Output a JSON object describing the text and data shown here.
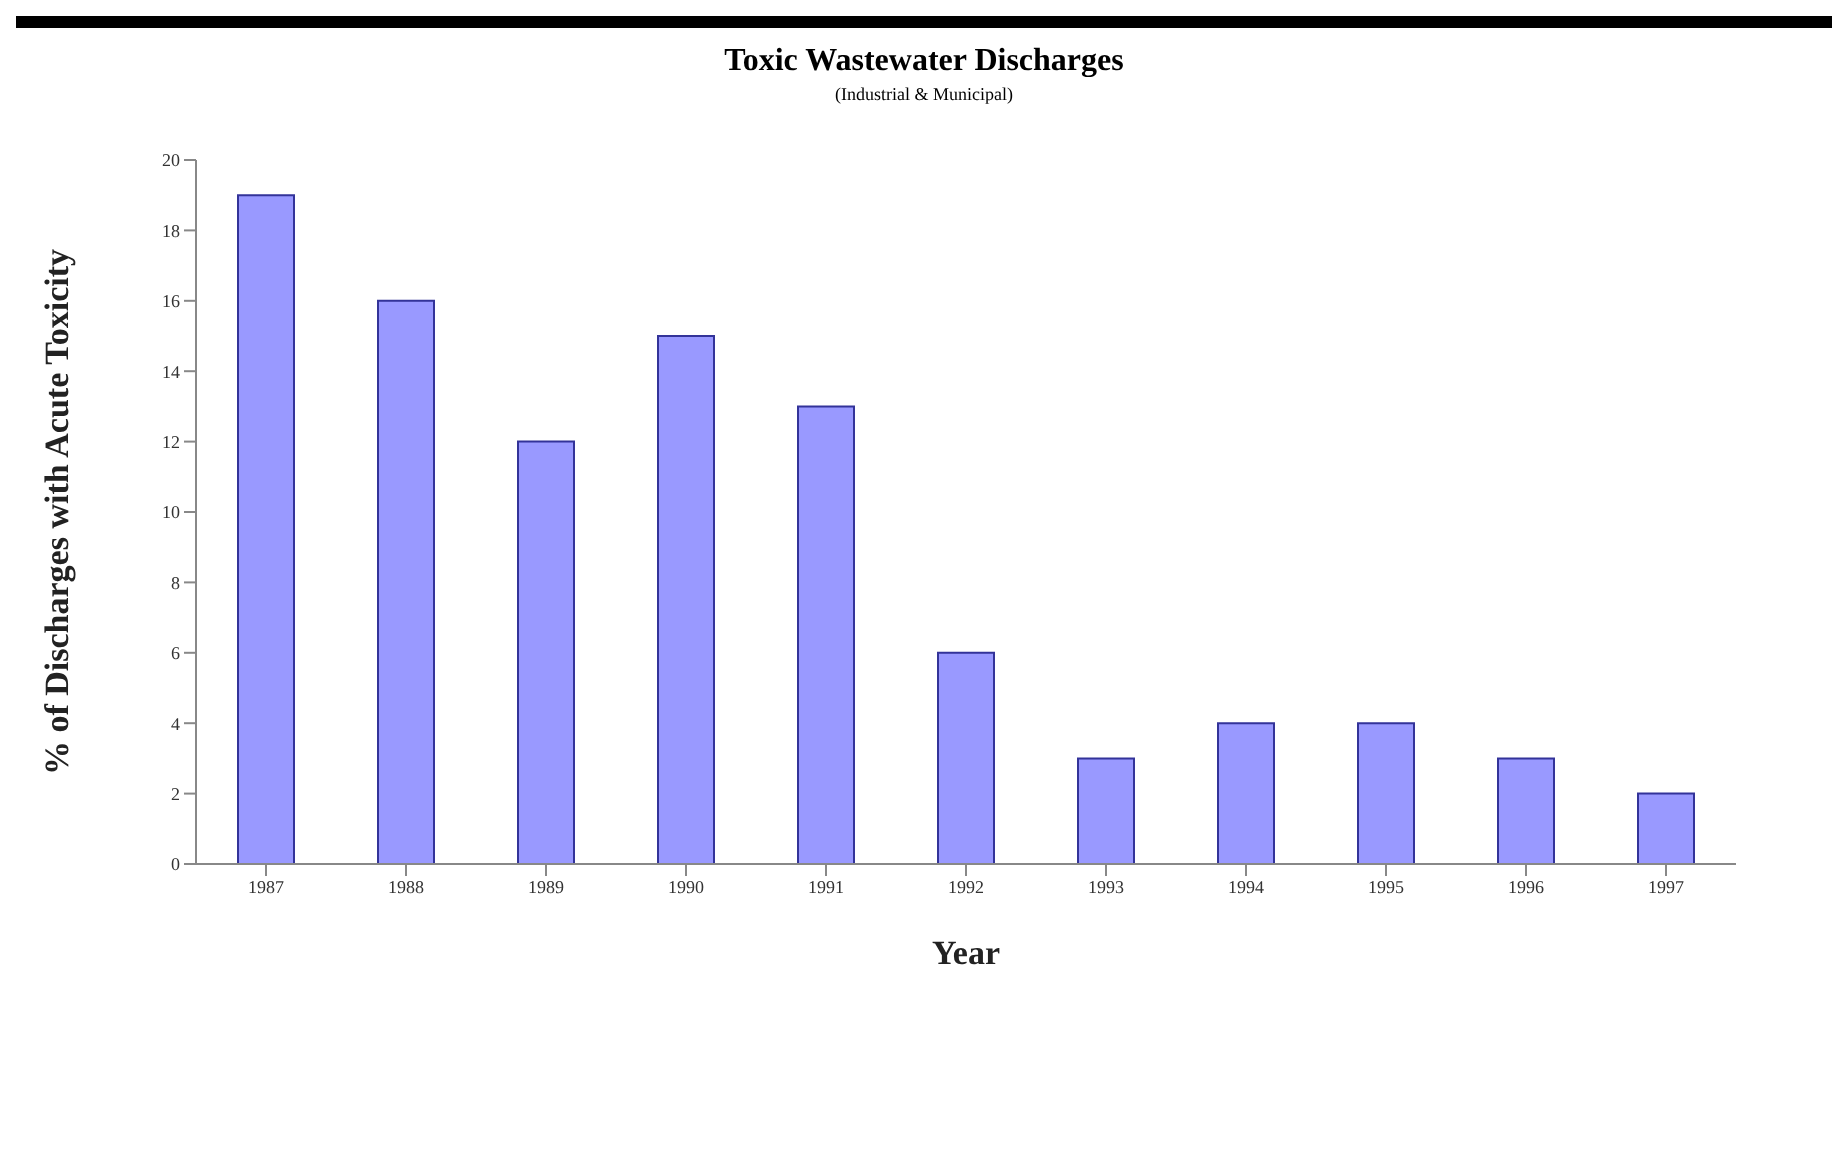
{
  "chart_data": {
    "type": "bar",
    "title": "Toxic Wastewater Discharges",
    "subtitle": "(Industrial & Municipal)",
    "xlabel": "Year",
    "ylabel": "% of Discharges with Acute Toxicity",
    "categories": [
      "1987",
      "1988",
      "1989",
      "1990",
      "1991",
      "1992",
      "1993",
      "1994",
      "1995",
      "1996",
      "1997"
    ],
    "values": [
      19,
      16,
      12,
      15,
      13,
      6,
      3,
      4,
      4,
      3,
      2
    ],
    "color": "#9999ff",
    "ylim": [
      0,
      20
    ],
    "yticks": [
      0,
      2,
      4,
      6,
      8,
      10,
      12,
      14,
      16,
      18,
      20
    ],
    "grid": false
  }
}
